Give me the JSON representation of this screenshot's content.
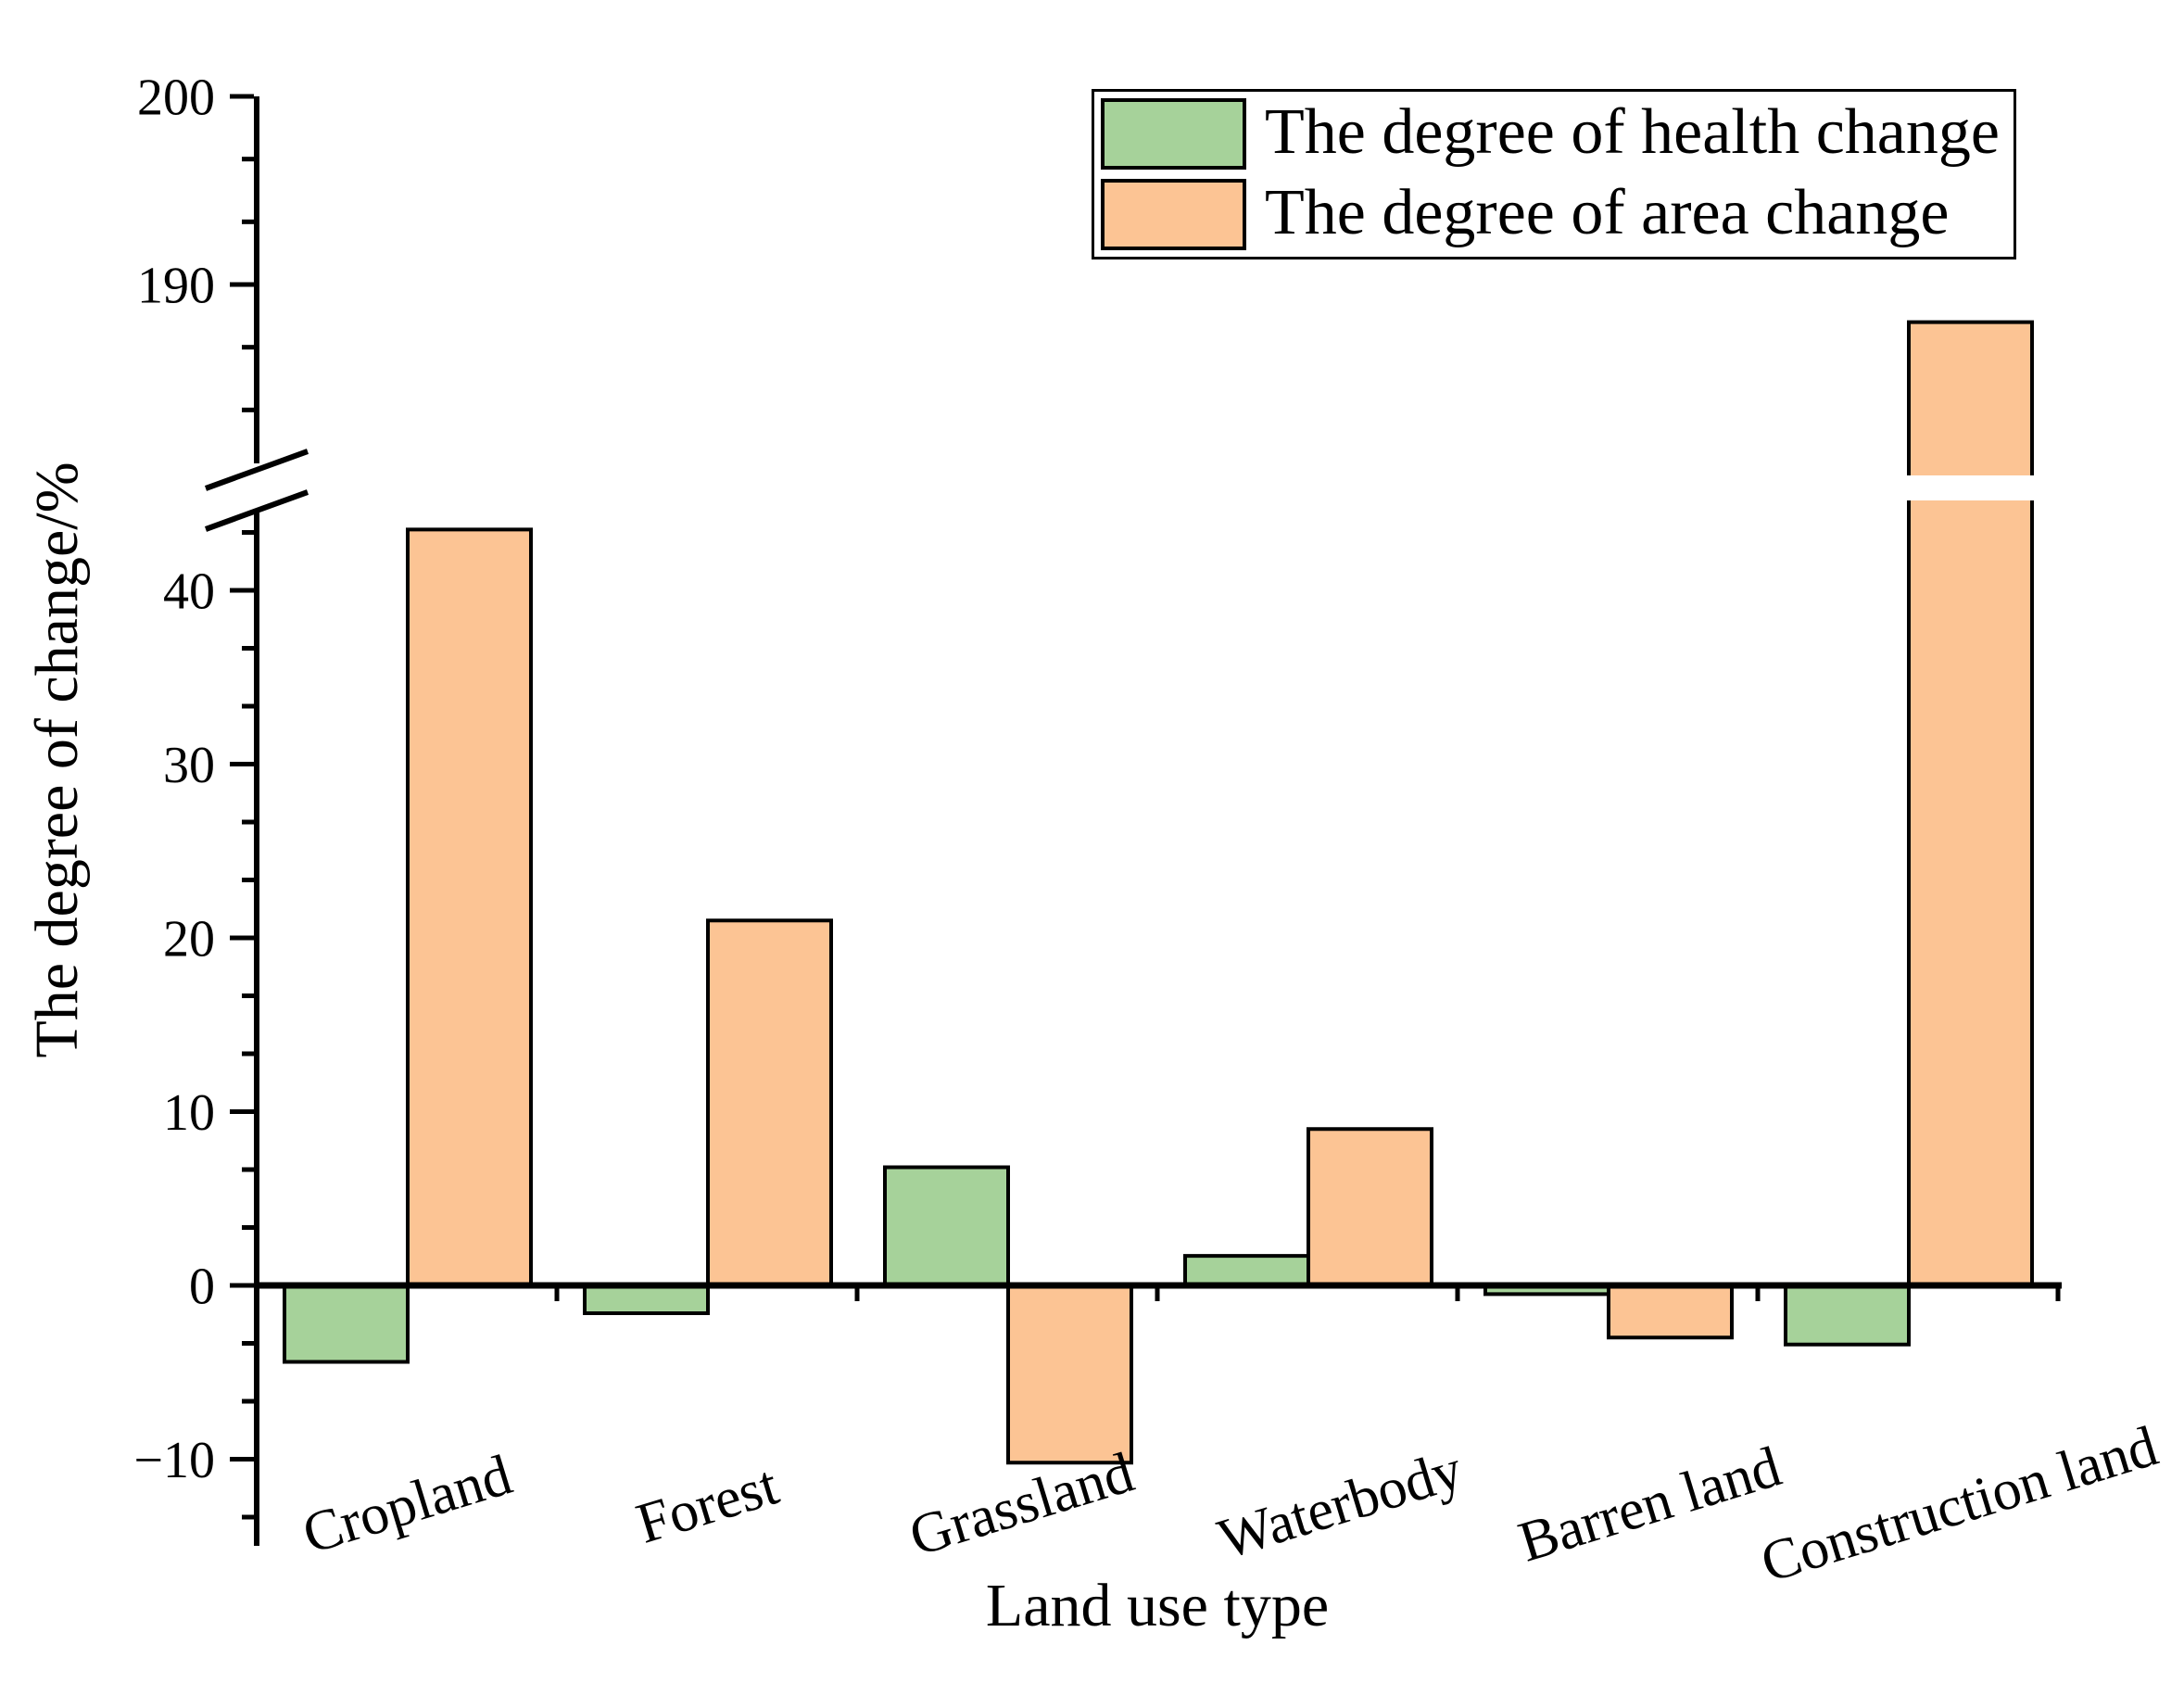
{
  "legend": {
    "items": [
      {
        "label": "The degree of health change",
        "color": "#A6D29A"
      },
      {
        "label": "The degree of area change",
        "color": "#FCC494"
      }
    ]
  },
  "chart_data": {
    "type": "bar",
    "xlabel": "Land use type",
    "ylabel": "The degree of change/%",
    "categories": [
      "Cropland",
      "Forest",
      "Grassland",
      "Waterbody",
      "Barren land",
      "Construction land"
    ],
    "series": [
      {
        "name": "The degree of health change",
        "color": "#A6D29A",
        "values": [
          -4.4,
          -1.6,
          6.8,
          1.7,
          -0.5,
          -3.4
        ]
      },
      {
        "name": "The degree of area change",
        "color": "#FCC494",
        "values": [
          43.5,
          21,
          -10.2,
          9,
          -3,
          188
        ]
      }
    ],
    "axis_break": {
      "lower_range": [
        -15,
        44.4
      ],
      "upper_range": [
        180.5,
        200
      ],
      "lower_ticks": [
        -10,
        0,
        10,
        20,
        30,
        40
      ],
      "upper_ticks": [
        190,
        200
      ],
      "minor_ticks_per_interval": 2
    },
    "grid": false,
    "legend_position": "top-right",
    "bar_outline_color": "#000000"
  }
}
